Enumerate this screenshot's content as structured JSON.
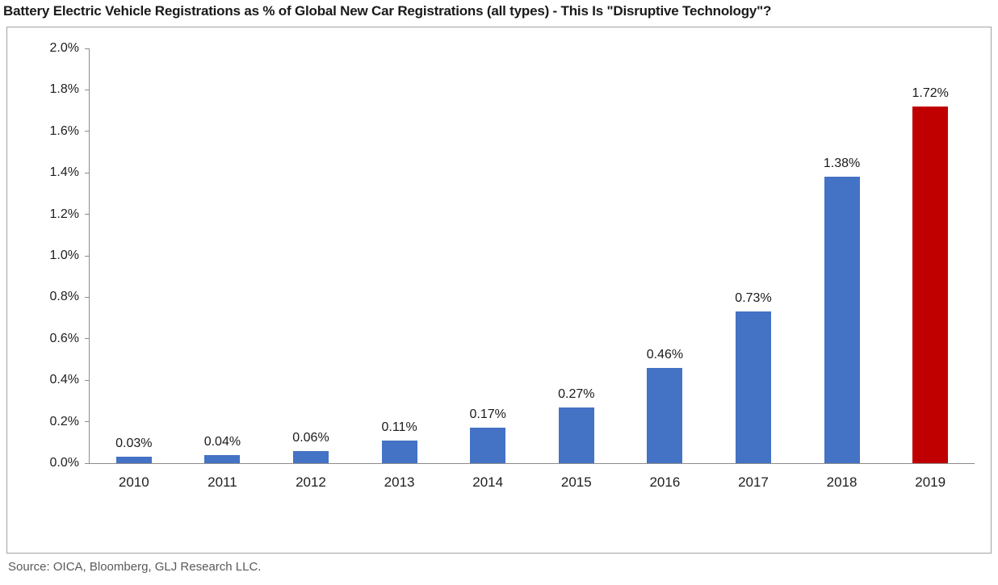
{
  "title": "Battery Electric Vehicle Registrations as % of Global New Car Registrations (all types) - This Is \"Disruptive Technology\"?",
  "source": "Source: OICA, Bloomberg, GLJ Research LLC.",
  "chart_data": {
    "type": "bar",
    "title": "Battery Electric Vehicle Registrations as % of Global New Car Registrations (all types) - This Is \"Disruptive Technology\"?",
    "categories": [
      "2010",
      "2011",
      "2012",
      "2013",
      "2014",
      "2015",
      "2016",
      "2017",
      "2018",
      "2019"
    ],
    "values": [
      0.03,
      0.04,
      0.06,
      0.11,
      0.17,
      0.27,
      0.46,
      0.73,
      1.38,
      1.72
    ],
    "value_labels": [
      "0.03%",
      "0.04%",
      "0.06%",
      "0.11%",
      "0.17%",
      "0.27%",
      "0.46%",
      "0.73%",
      "1.38%",
      "1.72%"
    ],
    "xlabel": "",
    "ylabel": "",
    "ylim": [
      0,
      2.0
    ],
    "y_ticks": [
      "0.0%",
      "0.2%",
      "0.4%",
      "0.6%",
      "0.8%",
      "1.0%",
      "1.2%",
      "1.4%",
      "1.6%",
      "1.8%",
      "2.0%"
    ],
    "grid": false,
    "legend": false,
    "bar_color": "#4472C4",
    "highlight_index": 9,
    "highlight_color": "#C00000",
    "source_note": "Source: OICA, Bloomberg, GLJ Research LLC."
  }
}
